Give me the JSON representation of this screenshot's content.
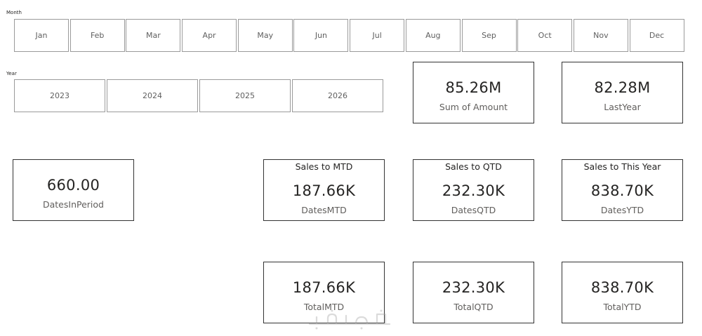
{
  "month_slicer": {
    "label": "Month",
    "items": [
      "Jan",
      "Feb",
      "Mar",
      "Apr",
      "May",
      "Jun",
      "Jul",
      "Aug",
      "Sep",
      "Oct",
      "Nov",
      "Dec"
    ]
  },
  "year_slicer": {
    "label": "Year",
    "items": [
      "2023",
      "2024",
      "2025",
      "2026"
    ]
  },
  "cards": {
    "sum_of_amount": {
      "value": "85.26M",
      "label": "Sum of Amount"
    },
    "last_year": {
      "value": "82.28M",
      "label": "LastYear"
    },
    "dates_in_period": {
      "value": "660.00",
      "label": "DatesInPeriod"
    },
    "dates_mtd": {
      "title": "Sales to MTD",
      "value": "187.66K",
      "label": "DatesMTD"
    },
    "dates_qtd": {
      "title": "Sales to QTD",
      "value": "232.30K",
      "label": "DatesQTD"
    },
    "dates_ytd": {
      "title": "Sales to This Year",
      "value": "838.70K",
      "label": "DatesYTD"
    },
    "total_mtd": {
      "value": "187.66K",
      "label": "TotalMTD"
    },
    "total_qtd": {
      "value": "232.30K",
      "label": "TotalQTD"
    },
    "total_ytd": {
      "value": "838.70K",
      "label": "TotalYTD"
    }
  },
  "watermark": {
    "logo_text": "خمسات"
  },
  "colors": {
    "tile_border": "#9a9a9a",
    "card_border": "#333333",
    "text": "#252423",
    "muted_text": "#605e5c"
  }
}
